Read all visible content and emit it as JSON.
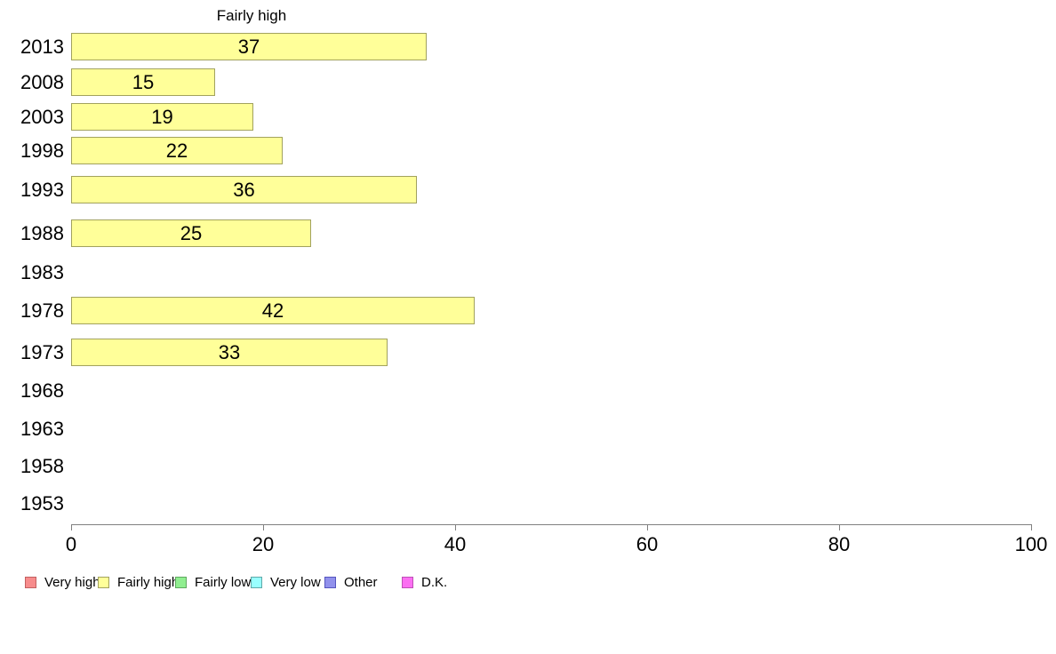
{
  "title": "Fairly high",
  "chart_data": {
    "type": "bar",
    "orientation": "horizontal",
    "title": "Fairly high",
    "xlabel": "",
    "ylabel": "",
    "xlim": [
      0,
      100
    ],
    "x_ticks": [
      0,
      20,
      40,
      60,
      80,
      100
    ],
    "grid": false,
    "legend_position": "bottom",
    "categories": [
      "2013",
      "2008",
      "2003",
      "1998",
      "1993",
      "1988",
      "1983",
      "1978",
      "1973",
      "1968",
      "1963",
      "1958",
      "1953"
    ],
    "series": [
      {
        "name": "Fairly high",
        "values": [
          37,
          15,
          19,
          22,
          36,
          25,
          null,
          42,
          33,
          null,
          null,
          null,
          null
        ]
      }
    ],
    "bar_fill_color": "#FFFF99",
    "bar_border_color": "#A2A25E",
    "axis_color": "#808080",
    "legend": [
      {
        "label": "Very high",
        "color": "#F78C8C",
        "border": "#C26060"
      },
      {
        "label": "Fairly high",
        "color": "#FFFF99",
        "border": "#A2A25E"
      },
      {
        "label": "Fairly low",
        "color": "#90EE90",
        "border": "#5FA85F"
      },
      {
        "label": "Very low",
        "color": "#99FFFF",
        "border": "#5FA8A8"
      },
      {
        "label": "Other",
        "color": "#9191EC",
        "border": "#5555BE"
      },
      {
        "label": "D.K.",
        "color": "#FB6FF2",
        "border": "#BE4FB6"
      }
    ]
  }
}
